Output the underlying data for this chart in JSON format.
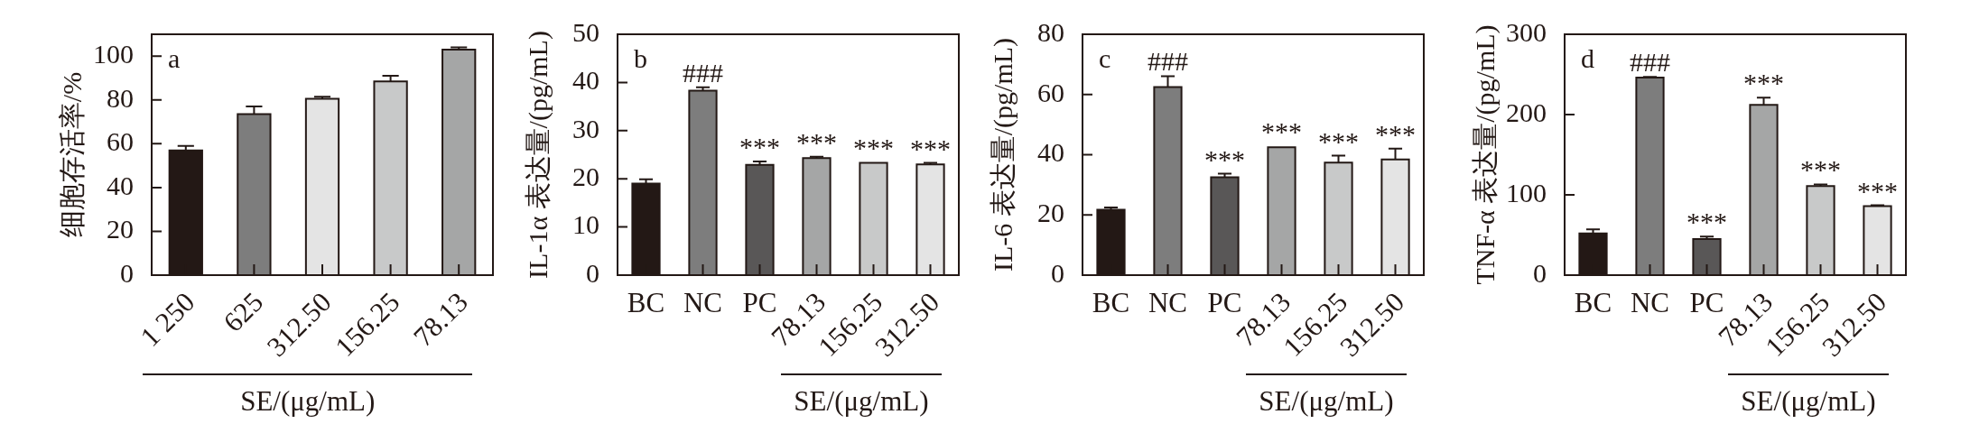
{
  "chart_data": [
    {
      "type": "bar",
      "title": "a",
      "ylabel": "细胞存活率/%",
      "xlabel": "SE/(μg/mL)",
      "categories": [
        "1 250",
        "625",
        "312.50",
        "156.25",
        "78.13"
      ],
      "values": [
        57,
        73.5,
        80.5,
        88.5,
        103
      ],
      "errors": [
        2,
        3.5,
        1,
        2.5,
        1
      ],
      "colors": [
        "#231815",
        "#7d7d7d",
        "#e4e4e4",
        "#c8c9c9",
        "#a5a6a6"
      ],
      "ylim": [
        0,
        110
      ],
      "yticks": [
        0,
        20,
        40,
        60,
        80,
        100
      ]
    },
    {
      "type": "bar",
      "title": "b",
      "ylabel": "IL-1α 表达量/(pg/mL)",
      "xlabel": "SE/(μg/mL)",
      "categories": [
        "BC",
        "NC",
        "PC",
        "78.13",
        "156.25",
        "312.50"
      ],
      "values": [
        19,
        38.3,
        22.9,
        24.3,
        23.3,
        23.0
      ],
      "errors": [
        0.9,
        0.7,
        0.7,
        0.3,
        null,
        0.3
      ],
      "colors": [
        "#231815",
        "#7d7d7d",
        "#595757",
        "#a5a6a6",
        "#c8c9c9",
        "#e4e4e4"
      ],
      "ylim": [
        0,
        50
      ],
      "yticks": [
        0,
        10,
        20,
        30,
        40,
        50
      ],
      "annotations": [
        {
          "text": "###",
          "x": "NC",
          "y": 39.0
        },
        {
          "text": "***",
          "x": "PC",
          "y": 23.6
        },
        {
          "text": "***",
          "x": "78.13",
          "y": 24.6
        },
        {
          "text": "***",
          "x": "156.25",
          "y": 23.5
        },
        {
          "text": "***",
          "x": "312.50",
          "y": 23.3
        }
      ]
    },
    {
      "type": "bar",
      "title": "c",
      "ylabel": "IL-6 表达量/(pg/mL)",
      "xlabel": "SE/(μg/mL)",
      "categories": [
        "BC",
        "NC",
        "PC",
        "78.13",
        "156.25",
        "312.50"
      ],
      "values": [
        21.7,
        62.5,
        32.5,
        42.5,
        37.4,
        38.4
      ],
      "errors": [
        0.8,
        3.6,
        1.2,
        null,
        2.3,
        3.6
      ],
      "colors": [
        "#231815",
        "#7d7d7d",
        "#595757",
        "#a5a6a6",
        "#c8c9c9",
        "#e4e4e4"
      ],
      "ylim": [
        0,
        80
      ],
      "yticks": [
        0,
        20,
        40,
        60,
        80
      ],
      "annotations": [
        {
          "text": "###",
          "x": "NC",
          "y": 66.1
        },
        {
          "text": "***",
          "x": "PC",
          "y": 33.7
        },
        {
          "text": "***",
          "x": "78.13",
          "y": 42.8
        },
        {
          "text": "***",
          "x": "156.25",
          "y": 39.7
        },
        {
          "text": "***",
          "x": "312.50",
          "y": 42.0
        }
      ]
    },
    {
      "type": "bar",
      "title": "d",
      "ylabel": "TNF-α 表达量/(pg/mL)",
      "xlabel": "SE/(μg/mL)",
      "categories": [
        "BC",
        "NC",
        "PC",
        "78.13",
        "156.25",
        "312.50"
      ],
      "values": [
        52,
        246,
        45,
        212,
        111,
        86
      ],
      "errors": [
        5,
        1,
        3,
        9,
        2,
        1
      ],
      "colors": [
        "#231815",
        "#7d7d7d",
        "#595757",
        "#a5a6a6",
        "#c8c9c9",
        "#e4e4e4"
      ],
      "ylim": [
        0,
        300
      ],
      "yticks": [
        0,
        100,
        200,
        300
      ],
      "annotations": [
        {
          "text": "###",
          "x": "NC",
          "y": 247
        },
        {
          "text": "***",
          "x": "PC",
          "y": 48
        },
        {
          "text": "***",
          "x": "78.13",
          "y": 221
        },
        {
          "text": "***",
          "x": "156.25",
          "y": 113
        },
        {
          "text": "***",
          "x": "312.50",
          "y": 87
        }
      ]
    }
  ]
}
